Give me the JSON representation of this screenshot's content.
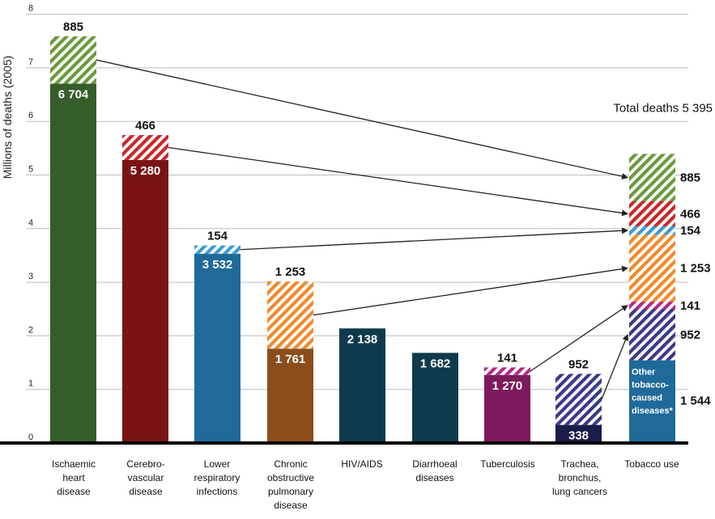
{
  "chart_data": {
    "type": "bar",
    "ylabel": "Millions of deaths (2005)",
    "ylim": [
      0,
      8
    ],
    "yticks": [
      "0",
      "1",
      "2",
      "3",
      "4",
      "5",
      "6",
      "7",
      "8"
    ],
    "grid": true,
    "bars": [
      {
        "category": [
          "Ischaemic",
          "heart",
          "disease"
        ],
        "base": 6704,
        "base_label": "6 704",
        "tobacco": 885,
        "tobacco_label": "885",
        "base_color": "#355e2a",
        "tobacco_color": "#6a9a3c"
      },
      {
        "category": [
          "Cerebro-",
          "vascular",
          "disease"
        ],
        "base": 5280,
        "base_label": "5 280",
        "tobacco": 466,
        "tobacco_label": "466",
        "base_color": "#7a1414",
        "tobacco_color": "#c8282c"
      },
      {
        "category": [
          "Lower",
          "respiratory",
          "infections"
        ],
        "base": 3532,
        "base_label": "3 532",
        "tobacco": 154,
        "tobacco_label": "154",
        "base_color": "#1f6a99",
        "tobacco_color": "#3a9ad6"
      },
      {
        "category": [
          "Chronic",
          "obstructive",
          "pulmonary",
          "disease"
        ],
        "base": 1761,
        "base_label": "1 761",
        "tobacco": 1253,
        "tobacco_label": "1 253",
        "base_color": "#8b4d1c",
        "tobacco_color": "#f08a2c"
      },
      {
        "category": [
          "HIV/AIDS"
        ],
        "base": 2138,
        "base_label": "2 138",
        "tobacco": 0,
        "tobacco_label": "",
        "base_color": "#0f3a4c",
        "tobacco_color": ""
      },
      {
        "category": [
          "Diarrhoeal",
          "diseases"
        ],
        "base": 1682,
        "base_label": "1 682",
        "tobacco": 0,
        "tobacco_label": "",
        "base_color": "#0f3a4c",
        "tobacco_color": ""
      },
      {
        "category": [
          "Tuberculosis"
        ],
        "base": 1270,
        "base_label": "1 270",
        "tobacco": 141,
        "tobacco_label": "141",
        "base_color": "#7d1a5e",
        "tobacco_color": "#b02a8c"
      },
      {
        "category": [
          "Trachea,",
          "bronchus,",
          "lung cancers"
        ],
        "base": 338,
        "base_label": "338",
        "tobacco": 952,
        "tobacco_label": "952",
        "base_color": "#1c1c4a",
        "tobacco_color": "#3a3a8a"
      }
    ],
    "tobacco_use": {
      "category": [
        "Tobacco use"
      ],
      "total_label": "Total deaths 5 395",
      "other_value": 1544,
      "other_value_label": "1 544",
      "other_text": [
        "Other",
        "tobacco-",
        "caused",
        "diseases*"
      ],
      "other_color": "#1f6a99"
    }
  }
}
